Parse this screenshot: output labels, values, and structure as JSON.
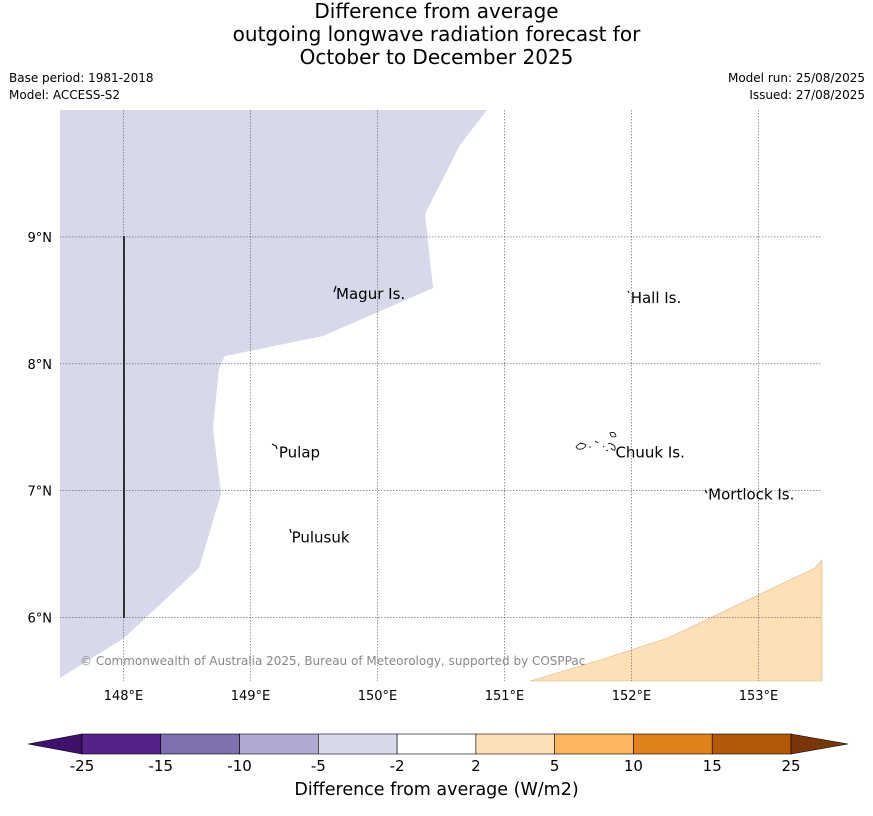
{
  "title": {
    "line1": "Difference from average",
    "line2": "outgoing longwave radiation forecast for",
    "line3": "October to December 2025"
  },
  "meta": {
    "base_period": "Base period: 1981-2018",
    "model": "Model: ACCESS-S2",
    "model_run": "Model run: 25/08/2025",
    "issued": "Issued: 27/08/2025"
  },
  "map": {
    "lon_ticks": [
      {
        "value": 148,
        "label": "148°E"
      },
      {
        "value": 149,
        "label": "149°E"
      },
      {
        "value": 150,
        "label": "150°E"
      },
      {
        "value": 151,
        "label": "151°E"
      },
      {
        "value": 152,
        "label": "152°E"
      },
      {
        "value": 153,
        "label": "153°E"
      }
    ],
    "lat_ticks": [
      {
        "value": 9,
        "label": "9°N"
      },
      {
        "value": 8,
        "label": "8°N"
      },
      {
        "value": 7,
        "label": "7°N"
      },
      {
        "value": 6,
        "label": "6°N"
      }
    ],
    "lon_range": [
      147.5,
      153.5
    ],
    "lat_range": [
      5.5,
      10.0
    ],
    "places": [
      {
        "name": "Magur Is.",
        "lon": 149.65,
        "lat": 8.55
      },
      {
        "name": "Hall Is.",
        "lon": 151.97,
        "lat": 8.52
      },
      {
        "name": "Pulap",
        "lon": 149.2,
        "lat": 7.3
      },
      {
        "name": "Chuuk Is.",
        "lon": 151.85,
        "lat": 7.3
      },
      {
        "name": "Mortlock Is.",
        "lon": 152.58,
        "lat": 6.97
      },
      {
        "name": "Pulusuk",
        "lon": 149.3,
        "lat": 6.63
      }
    ],
    "copyright": "© Commonwealth of Australia 2025, Bureau of Meteorology, supported by COSPPac",
    "regions": [
      {
        "category": "-5 to -2",
        "color": "#d7d8e9"
      },
      {
        "category": "2 to 5",
        "color": "#fde0b5"
      }
    ]
  },
  "colorbar": {
    "label": "Difference from average (W/m2)",
    "ticks": [
      "-25",
      "-15",
      "-10",
      "-5",
      "-2",
      "2",
      "5",
      "10",
      "15",
      "25"
    ],
    "colors": [
      "#3f0f6d",
      "#552388",
      "#8070ae",
      "#b0a9d1",
      "#d7d8e9",
      "#ffffff",
      "#fde0b5",
      "#fdb55e",
      "#e0811b",
      "#b35808",
      "#7b3607"
    ]
  }
}
